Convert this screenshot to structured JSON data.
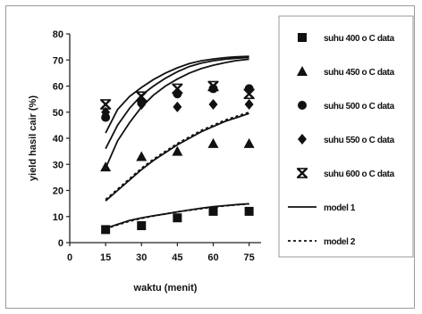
{
  "chart_data": {
    "type": "scatter",
    "title": "",
    "xlabel": "waktu (menit)",
    "ylabel": "yield hasil cair (%)",
    "xlim": [
      0,
      80
    ],
    "ylim": [
      0,
      80
    ],
    "xticks": [
      0,
      15,
      30,
      45,
      60,
      75
    ],
    "yticks": [
      0,
      10,
      20,
      30,
      40,
      50,
      60,
      70,
      80
    ],
    "grid": false,
    "legend_position": "right",
    "series": [
      {
        "name": "suhu 400 o C data",
        "marker": "square",
        "x": [
          15,
          30,
          45,
          60,
          75
        ],
        "y": [
          5,
          6.5,
          9.5,
          12,
          12
        ]
      },
      {
        "name": "suhu 450 o C data",
        "marker": "triangle",
        "x": [
          15,
          30,
          45,
          60,
          75
        ],
        "y": [
          29,
          33,
          35,
          38,
          38
        ]
      },
      {
        "name": "suhu 500 o C data",
        "marker": "circle",
        "x": [
          15,
          30,
          45,
          60,
          75
        ],
        "y": [
          48,
          54,
          57,
          59,
          59
        ]
      },
      {
        "name": "suhu 550 o C data",
        "marker": "diamond",
        "x": [
          15,
          30,
          45,
          60,
          75
        ],
        "y": [
          50,
          53,
          52,
          53,
          53
        ]
      },
      {
        "name": "suhu 600 o C data",
        "marker": "x-cross",
        "x": [
          15,
          30,
          45,
          60,
          75
        ],
        "y": [
          53,
          56,
          59,
          60,
          57
        ]
      }
    ],
    "model_1_curves": [
      {
        "x": [
          15,
          20,
          25,
          30,
          35,
          40,
          45,
          50,
          55,
          60,
          65,
          70,
          75
        ],
        "y": [
          5.5,
          7,
          8.5,
          9.5,
          10.3,
          11,
          11.8,
          12.5,
          13.2,
          13.8,
          14.2,
          14.6,
          14.9
        ]
      },
      {
        "x": [
          15,
          20,
          25,
          30,
          35,
          40,
          45,
          50,
          55,
          60,
          65,
          70,
          75
        ],
        "y": [
          28.5,
          39,
          46,
          52,
          56.5,
          60,
          62.7,
          65,
          66.7,
          68,
          69,
          69.8,
          70.3
        ]
      },
      {
        "x": [
          15,
          20,
          25,
          30,
          35,
          40,
          45,
          50,
          55,
          60,
          65,
          70,
          75
        ],
        "y": [
          36,
          45,
          51.5,
          56.5,
          60,
          63,
          65.5,
          67.5,
          68.8,
          69.7,
          70.3,
          70.7,
          71
        ]
      },
      {
        "x": [
          15,
          20,
          25,
          30,
          35,
          40,
          45,
          50,
          55,
          60,
          65,
          70,
          75
        ],
        "y": [
          42,
          51,
          56,
          59.5,
          62.5,
          65,
          67,
          68.6,
          69.7,
          70.4,
          70.9,
          71.2,
          71.4
        ]
      },
      {
        "x": [
          15,
          20,
          25,
          30,
          35,
          40,
          45,
          50,
          55,
          60,
          65,
          70,
          75
        ],
        "y": [
          16,
          20,
          24,
          28,
          31.5,
          34.5,
          37.5,
          40,
          42.5,
          44.5,
          46.5,
          48,
          49.5
        ]
      }
    ],
    "model_2_curves": [
      {
        "x": [
          15,
          20,
          25,
          30,
          35,
          40,
          45,
          50,
          55,
          60,
          65,
          70,
          75
        ],
        "y": [
          16.5,
          20.5,
          24.5,
          28.5,
          32,
          35,
          38,
          40.5,
          43,
          45,
          47,
          48.5,
          50
        ]
      },
      {
        "x": [
          15,
          20,
          25,
          30,
          35,
          40,
          45,
          50,
          55,
          60,
          65,
          70,
          75
        ],
        "y": [
          5.3,
          6.8,
          8.2,
          9.3,
          10.2,
          11,
          11.8,
          12.4,
          13,
          13.6,
          14.1,
          14.5,
          14.8
        ]
      }
    ],
    "legend": [
      {
        "label": "suhu 400 o C data",
        "symbol": "square"
      },
      {
        "label": "suhu 450 o C data",
        "symbol": "triangle"
      },
      {
        "label": "suhu 500 o C data",
        "symbol": "circle"
      },
      {
        "label": "suhu 550 o C data",
        "symbol": "diamond"
      },
      {
        "label": "suhu 600 o C data",
        "symbol": "x-cross"
      },
      {
        "label": "model 1",
        "symbol": "solid-line"
      },
      {
        "label": "model 2",
        "symbol": "dotted-line"
      }
    ],
    "colors": {
      "ink": "#111111",
      "axis": "#222222",
      "frame": "#9a9a9a"
    }
  }
}
